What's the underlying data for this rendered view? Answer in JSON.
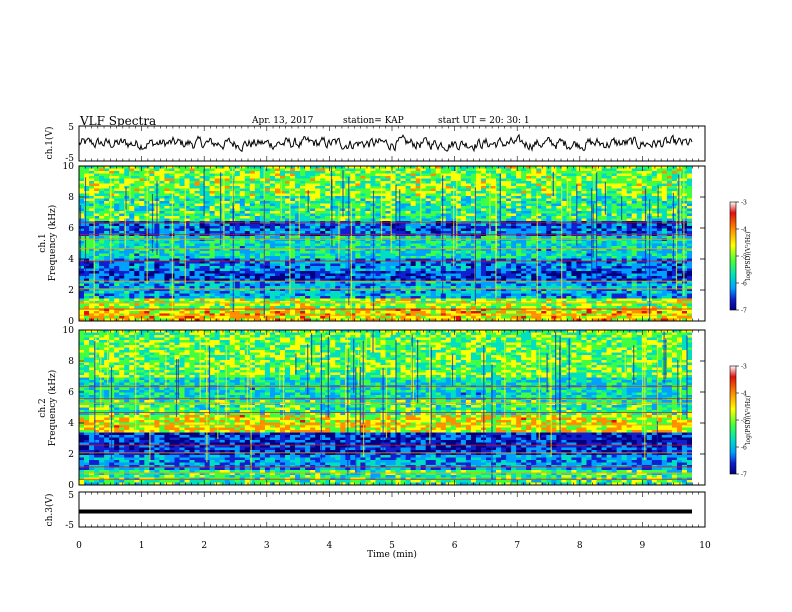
{
  "header": {
    "title": "VLF Spectra",
    "date": "Apr. 13, 2017",
    "station": "station= KAP",
    "start_time": "start  UT  =   20: 30: 1"
  },
  "chart_data": [
    {
      "type": "line",
      "panel": "ch1-waveform",
      "ylabel": "ch.1(V)",
      "ylim": [
        -5,
        5
      ],
      "yticks": [
        "5",
        "-5"
      ],
      "xlim": [
        0,
        10
      ],
      "description_values": "noisy waveform oscillating roughly between -2 and 2 V over 0-9.8 min"
    },
    {
      "type": "heatmap",
      "panel": "ch1-spectrogram",
      "ylabel_top": "ch.1",
      "ylabel": "Frequency  (kHz)",
      "ylim": [
        0,
        10
      ],
      "yticks": [
        "0",
        "2",
        "4",
        "6",
        "8",
        "10"
      ],
      "xlim": [
        0,
        10
      ],
      "colorbar": {
        "label": "log(PSD)(V²/Hz)",
        "range": [
          -7,
          -3
        ],
        "ticks": [
          "-3",
          "-4",
          "-5",
          "-6",
          "-7"
        ]
      }
    },
    {
      "type": "heatmap",
      "panel": "ch2-spectrogram",
      "ylabel_top": "ch.2",
      "ylabel": "Frequency  (kHz)",
      "ylim": [
        0,
        10
      ],
      "yticks": [
        "0",
        "2",
        "4",
        "6",
        "8",
        "10"
      ],
      "xlim": [
        0,
        10
      ],
      "colorbar": {
        "label": "log(PSD)(V²/Hz)",
        "range": [
          -7,
          -3
        ],
        "ticks": [
          "-3",
          "-4",
          "-5",
          "-6",
          "-7"
        ]
      }
    },
    {
      "type": "line",
      "panel": "ch3-waveform",
      "ylabel": "ch.3(V)",
      "ylim": [
        -5,
        5
      ],
      "yticks": [
        "5",
        "-5"
      ],
      "values_constant": -1.2,
      "xlim": [
        0,
        10
      ],
      "xlabel": "Time  (min)",
      "xticks": [
        "0",
        "1",
        "2",
        "3",
        "4",
        "5",
        "6",
        "7",
        "8",
        "9",
        "10"
      ]
    }
  ],
  "colors": {
    "colormap": [
      "#ffffff",
      "#e01010",
      "#ff8c00",
      "#ffff00",
      "#40ff40",
      "#00e0c0",
      "#00a0ff",
      "#1020d0",
      "#000080"
    ]
  }
}
